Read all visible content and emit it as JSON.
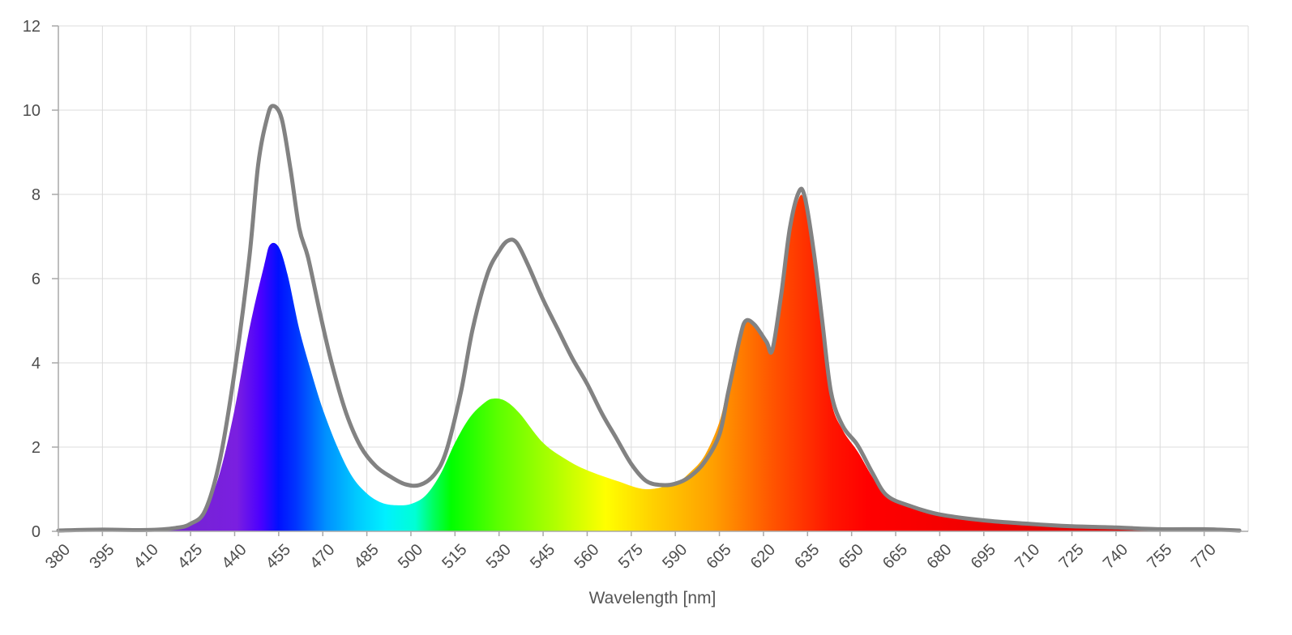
{
  "chart_data": {
    "type": "area",
    "title": "",
    "xlabel": "Wavelength [nm]",
    "ylabel": "",
    "xlim": [
      380,
      785
    ],
    "ylim": [
      0,
      12
    ],
    "grid": true,
    "x_ticks": [
      380,
      395,
      410,
      425,
      440,
      455,
      470,
      485,
      500,
      515,
      530,
      545,
      560,
      575,
      590,
      605,
      620,
      635,
      650,
      665,
      680,
      695,
      710,
      725,
      740,
      755,
      770
    ],
    "y_ticks": [
      0,
      2,
      4,
      6,
      8,
      10,
      12
    ],
    "series": [
      {
        "style": "spectrum-filled-area",
        "points": [
          [
            380,
            0.02
          ],
          [
            395,
            0.04
          ],
          [
            410,
            0.03
          ],
          [
            420,
            0.07
          ],
          [
            425,
            0.15
          ],
          [
            430,
            0.5
          ],
          [
            435,
            1.4
          ],
          [
            440,
            2.9
          ],
          [
            445,
            4.8
          ],
          [
            450,
            6.3
          ],
          [
            452,
            6.8
          ],
          [
            455,
            6.75
          ],
          [
            458,
            6.1
          ],
          [
            462,
            4.8
          ],
          [
            466,
            3.8
          ],
          [
            470,
            2.9
          ],
          [
            475,
            2.0
          ],
          [
            480,
            1.3
          ],
          [
            485,
            0.9
          ],
          [
            490,
            0.68
          ],
          [
            495,
            0.62
          ],
          [
            500,
            0.65
          ],
          [
            505,
            0.85
          ],
          [
            510,
            1.35
          ],
          [
            515,
            2.1
          ],
          [
            520,
            2.7
          ],
          [
            525,
            3.05
          ],
          [
            528,
            3.15
          ],
          [
            532,
            3.1
          ],
          [
            537,
            2.8
          ],
          [
            545,
            2.1
          ],
          [
            553,
            1.7
          ],
          [
            560,
            1.45
          ],
          [
            570,
            1.2
          ],
          [
            580,
            1.0
          ],
          [
            590,
            1.15
          ],
          [
            595,
            1.4
          ],
          [
            600,
            1.8
          ],
          [
            605,
            2.6
          ],
          [
            608,
            3.5
          ],
          [
            612,
            4.7
          ],
          [
            615,
            5.0
          ],
          [
            618,
            4.85
          ],
          [
            621,
            4.5
          ],
          [
            623,
            4.3
          ],
          [
            626,
            5.4
          ],
          [
            629,
            7.0
          ],
          [
            632,
            7.9
          ],
          [
            634,
            7.8
          ],
          [
            637,
            6.5
          ],
          [
            640,
            4.8
          ],
          [
            643,
            3.1
          ],
          [
            647,
            2.4
          ],
          [
            652,
            1.9
          ],
          [
            657,
            1.3
          ],
          [
            662,
            0.8
          ],
          [
            670,
            0.6
          ],
          [
            680,
            0.4
          ],
          [
            695,
            0.26
          ],
          [
            710,
            0.18
          ],
          [
            725,
            0.12
          ],
          [
            740,
            0.09
          ],
          [
            755,
            0.05
          ],
          [
            770,
            0.05
          ],
          [
            782,
            0.02
          ]
        ]
      },
      {
        "style": "gray-line",
        "color": "#828282",
        "points": [
          [
            380,
            0.02
          ],
          [
            395,
            0.04
          ],
          [
            410,
            0.03
          ],
          [
            420,
            0.08
          ],
          [
            425,
            0.18
          ],
          [
            430,
            0.5
          ],
          [
            435,
            1.7
          ],
          [
            440,
            3.8
          ],
          [
            445,
            6.5
          ],
          [
            448,
            8.7
          ],
          [
            451,
            9.8
          ],
          [
            453,
            10.1
          ],
          [
            456,
            9.8
          ],
          [
            459,
            8.6
          ],
          [
            462,
            7.2
          ],
          [
            465,
            6.5
          ],
          [
            469,
            5.2
          ],
          [
            473,
            4.0
          ],
          [
            478,
            2.8
          ],
          [
            483,
            2.0
          ],
          [
            488,
            1.55
          ],
          [
            493,
            1.3
          ],
          [
            498,
            1.12
          ],
          [
            503,
            1.1
          ],
          [
            508,
            1.35
          ],
          [
            512,
            1.9
          ],
          [
            517,
            3.3
          ],
          [
            521,
            4.8
          ],
          [
            526,
            6.1
          ],
          [
            530,
            6.65
          ],
          [
            533,
            6.9
          ],
          [
            536,
            6.85
          ],
          [
            540,
            6.3
          ],
          [
            545,
            5.5
          ],
          [
            550,
            4.8
          ],
          [
            555,
            4.1
          ],
          [
            560,
            3.5
          ],
          [
            565,
            2.8
          ],
          [
            570,
            2.2
          ],
          [
            575,
            1.6
          ],
          [
            580,
            1.2
          ],
          [
            585,
            1.1
          ],
          [
            590,
            1.13
          ],
          [
            595,
            1.3
          ],
          [
            600,
            1.65
          ],
          [
            605,
            2.3
          ],
          [
            608,
            3.3
          ],
          [
            612,
            4.6
          ],
          [
            614,
            5.0
          ],
          [
            617,
            4.9
          ],
          [
            621,
            4.5
          ],
          [
            623,
            4.3
          ],
          [
            626,
            5.6
          ],
          [
            629,
            7.2
          ],
          [
            632,
            8.05
          ],
          [
            634,
            7.95
          ],
          [
            637,
            6.7
          ],
          [
            640,
            5.0
          ],
          [
            643,
            3.3
          ],
          [
            647,
            2.5
          ],
          [
            652,
            2.05
          ],
          [
            657,
            1.4
          ],
          [
            662,
            0.85
          ],
          [
            670,
            0.6
          ],
          [
            680,
            0.4
          ],
          [
            695,
            0.26
          ],
          [
            710,
            0.18
          ],
          [
            725,
            0.12
          ],
          [
            740,
            0.09
          ],
          [
            755,
            0.05
          ],
          [
            770,
            0.05
          ],
          [
            782,
            0.02
          ]
        ]
      }
    ]
  }
}
